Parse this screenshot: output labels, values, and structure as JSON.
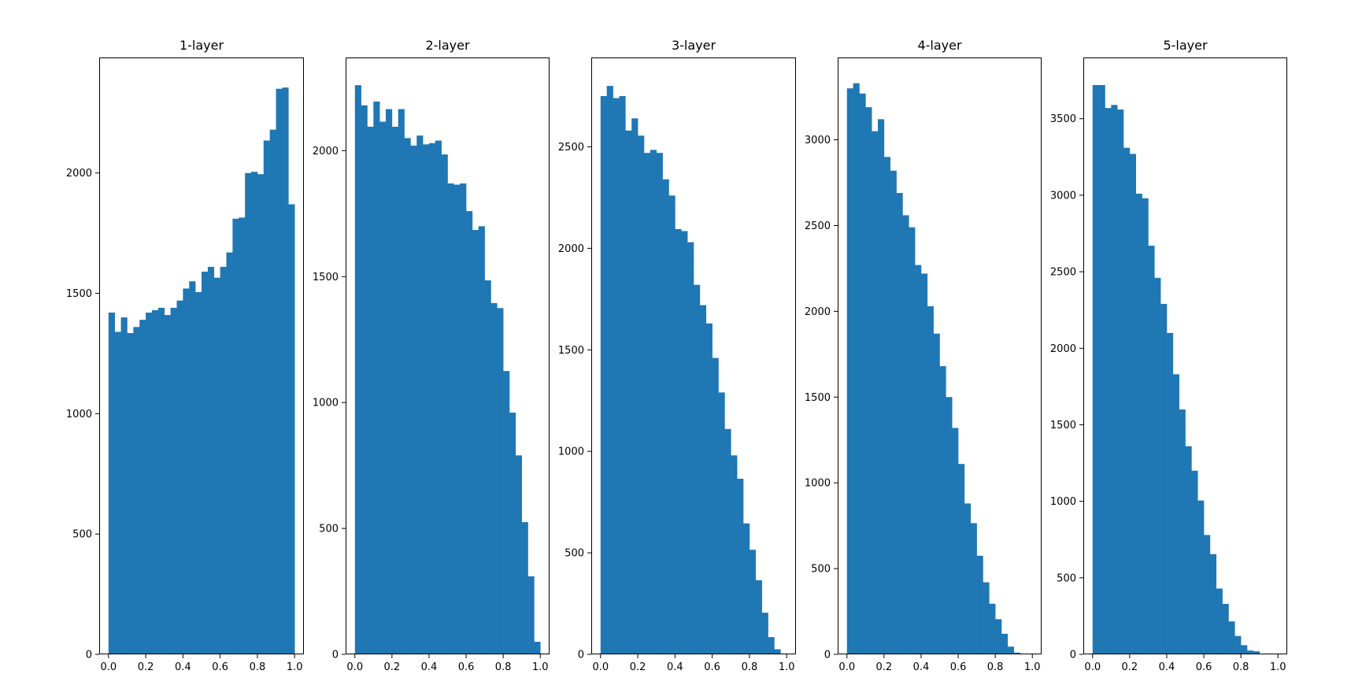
{
  "chart_data": [
    {
      "type": "bar",
      "title": "1-layer",
      "bins": 30,
      "bin_range": [
        0,
        1
      ],
      "xlim": [
        -0.05,
        1.05
      ],
      "ylim": [
        0,
        2480
      ],
      "xticks": [
        0.0,
        0.2,
        0.4,
        0.6,
        0.8,
        1.0
      ],
      "yticks": [
        0,
        500,
        1000,
        1500,
        2000
      ],
      "color": "#1f77b4",
      "values": [
        1420,
        1340,
        1400,
        1335,
        1360,
        1390,
        1420,
        1430,
        1440,
        1410,
        1440,
        1470,
        1520,
        1550,
        1505,
        1590,
        1610,
        1565,
        1610,
        1670,
        1810,
        1815,
        2000,
        2005,
        1995,
        2135,
        2180,
        2350,
        2355,
        1870
      ]
    },
    {
      "type": "bar",
      "title": "2-layer",
      "bins": 30,
      "bin_range": [
        0,
        1
      ],
      "xlim": [
        -0.05,
        1.05
      ],
      "ylim": [
        0,
        2370
      ],
      "xticks": [
        0.0,
        0.2,
        0.4,
        0.6,
        0.8,
        1.0
      ],
      "yticks": [
        0,
        500,
        1000,
        1500,
        2000
      ],
      "color": "#1f77b4",
      "values": [
        2260,
        2180,
        2095,
        2195,
        2115,
        2165,
        2095,
        2165,
        2050,
        2020,
        2060,
        2025,
        2030,
        2040,
        1985,
        1870,
        1865,
        1870,
        1760,
        1685,
        1700,
        1485,
        1395,
        1375,
        1125,
        960,
        790,
        525,
        310,
        50
      ]
    },
    {
      "type": "bar",
      "title": "3-layer",
      "bins": 30,
      "bin_range": [
        0,
        1
      ],
      "xlim": [
        -0.05,
        1.05
      ],
      "ylim": [
        0,
        2940
      ],
      "xticks": [
        0.0,
        0.2,
        0.4,
        0.6,
        0.8,
        1.0
      ],
      "yticks": [
        0,
        500,
        1000,
        1500,
        2000,
        2500
      ],
      "color": "#1f77b4",
      "values": [
        2750,
        2800,
        2740,
        2750,
        2580,
        2640,
        2555,
        2470,
        2485,
        2470,
        2340,
        2260,
        2095,
        2085,
        2030,
        1820,
        1720,
        1630,
        1460,
        1290,
        1110,
        980,
        865,
        645,
        515,
        365,
        205,
        85,
        25,
        0
      ]
    },
    {
      "type": "bar",
      "title": "4-layer",
      "bins": 30,
      "bin_range": [
        0,
        1
      ],
      "xlim": [
        -0.05,
        1.05
      ],
      "ylim": [
        0,
        3480
      ],
      "xticks": [
        0.0,
        0.2,
        0.4,
        0.6,
        0.8,
        1.0
      ],
      "yticks": [
        0,
        500,
        1000,
        1500,
        2000,
        2500,
        3000
      ],
      "color": "#1f77b4",
      "values": [
        3300,
        3330,
        3270,
        3190,
        3050,
        3120,
        2900,
        2820,
        2690,
        2560,
        2490,
        2270,
        2220,
        2030,
        1870,
        1680,
        1500,
        1320,
        1110,
        880,
        765,
        575,
        420,
        295,
        205,
        120,
        45,
        10,
        0,
        0
      ]
    },
    {
      "type": "bar",
      "title": "5-layer",
      "bins": 30,
      "bin_range": [
        0,
        1
      ],
      "xlim": [
        -0.05,
        1.05
      ],
      "ylim": [
        0,
        3900
      ],
      "xticks": [
        0.0,
        0.2,
        0.4,
        0.6,
        0.8,
        1.0
      ],
      "yticks": [
        0,
        500,
        1000,
        1500,
        2000,
        2500,
        3000,
        3500
      ],
      "color": "#1f77b4",
      "values": [
        3720,
        3720,
        3570,
        3590,
        3560,
        3310,
        3270,
        3010,
        2980,
        2670,
        2460,
        2290,
        2100,
        1830,
        1600,
        1360,
        1200,
        1005,
        780,
        655,
        430,
        330,
        215,
        120,
        60,
        25,
        20,
        0,
        0,
        0
      ]
    }
  ]
}
